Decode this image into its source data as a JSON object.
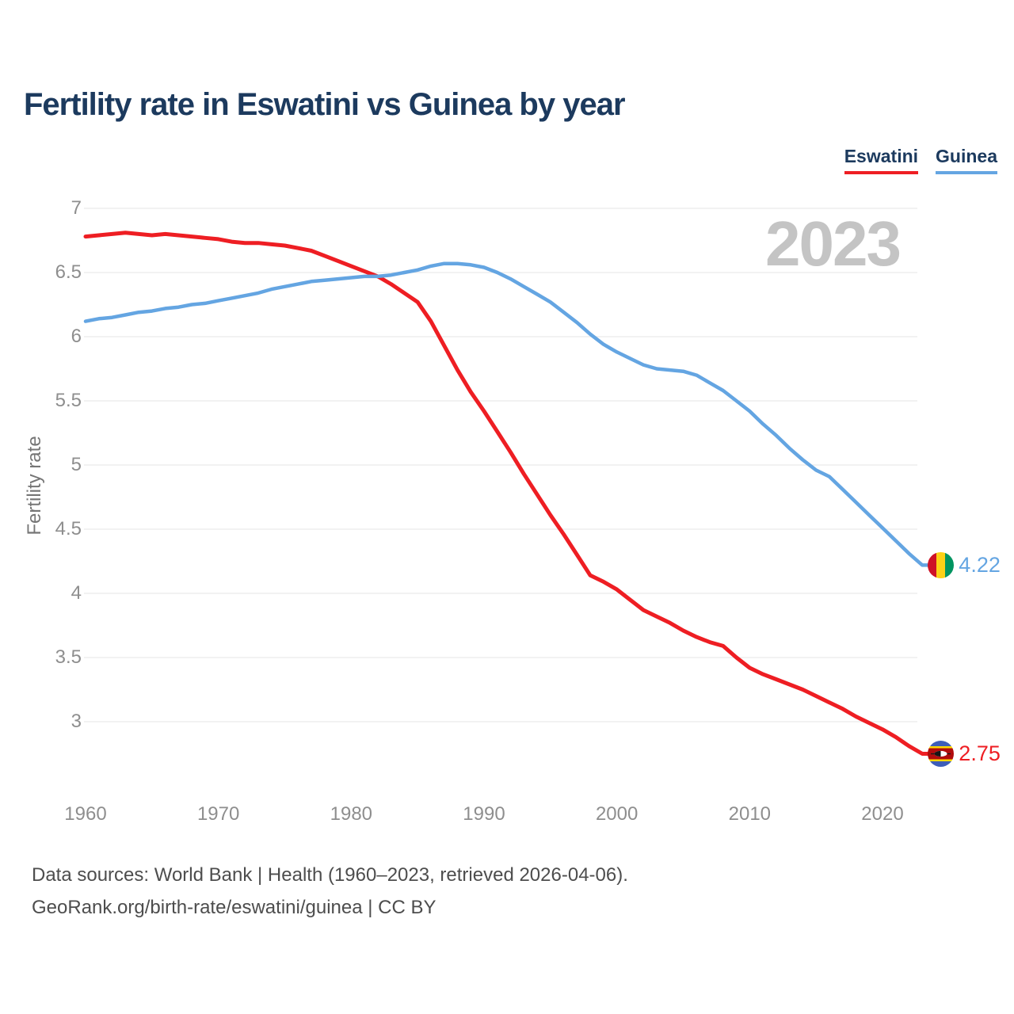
{
  "title": "Fertility rate in Eswatini vs Guinea by year",
  "watermark_year": "2023",
  "legend": [
    {
      "label": "Eswatini",
      "color": "#ee1e23"
    },
    {
      "label": "Guinea",
      "color": "#64a5e2"
    }
  ],
  "endpoints": {
    "eswatini": {
      "value": "2.75"
    },
    "guinea": {
      "value": "4.22"
    }
  },
  "footer": {
    "line1": "Data sources: World Bank | Health (1960–2023, retrieved 2026-04-06).",
    "line2": "GeoRank.org/birth-rate/eswatini/guinea | CC BY"
  },
  "colors": {
    "eswatini_line": "#ee1e23",
    "guinea_line": "#64a5e2",
    "title_text": "#1c3a5e",
    "watermark": "#c4c4c4",
    "grid": "#e9e9e9",
    "tick_text": "#8e8e8e",
    "footer_text": "#4d4d4d"
  },
  "chart_data": {
    "type": "line",
    "title": "Fertility rate in Eswatini vs Guinea by year",
    "xlabel": "",
    "ylabel": "Fertility rate",
    "x_ticks": [
      1960,
      1970,
      1980,
      1990,
      2000,
      2010,
      2020
    ],
    "y_ticks": [
      7,
      6.5,
      6,
      5.5,
      5,
      4.5,
      4,
      3.5,
      3
    ],
    "xlim": [
      1960,
      2023
    ],
    "ylim": [
      2.6,
      7.05
    ],
    "grid": true,
    "legend_position": "top-right",
    "years": [
      1960,
      1961,
      1962,
      1963,
      1964,
      1965,
      1966,
      1967,
      1968,
      1969,
      1970,
      1971,
      1972,
      1973,
      1974,
      1975,
      1976,
      1977,
      1978,
      1979,
      1980,
      1981,
      1982,
      1983,
      1984,
      1985,
      1986,
      1987,
      1988,
      1989,
      1990,
      1991,
      1992,
      1993,
      1994,
      1995,
      1996,
      1997,
      1998,
      1999,
      2000,
      2001,
      2002,
      2003,
      2004,
      2005,
      2006,
      2007,
      2008,
      2009,
      2010,
      2011,
      2012,
      2013,
      2014,
      2015,
      2016,
      2017,
      2018,
      2019,
      2020,
      2021,
      2022,
      2023
    ],
    "series": [
      {
        "name": "Eswatini",
        "color": "#ee1e23",
        "end_value": 2.75,
        "end_label": "2.75",
        "values": [
          6.78,
          6.79,
          6.8,
          6.81,
          6.8,
          6.79,
          6.8,
          6.79,
          6.78,
          6.77,
          6.76,
          6.74,
          6.73,
          6.73,
          6.72,
          6.71,
          6.69,
          6.67,
          6.63,
          6.59,
          6.55,
          6.51,
          6.47,
          6.41,
          6.34,
          6.27,
          6.12,
          5.93,
          5.74,
          5.57,
          5.42,
          5.26,
          5.1,
          4.93,
          4.77,
          4.61,
          4.46,
          4.3,
          4.14,
          4.09,
          4.03,
          3.95,
          3.87,
          3.82,
          3.77,
          3.71,
          3.66,
          3.62,
          3.59,
          3.5,
          3.42,
          3.37,
          3.33,
          3.29,
          3.25,
          3.2,
          3.15,
          3.1,
          3.04,
          2.99,
          2.94,
          2.88,
          2.81,
          2.75
        ]
      },
      {
        "name": "Guinea",
        "color": "#64a5e2",
        "end_value": 4.22,
        "end_label": "4.22",
        "values": [
          6.12,
          6.14,
          6.15,
          6.17,
          6.19,
          6.2,
          6.22,
          6.23,
          6.25,
          6.26,
          6.28,
          6.3,
          6.32,
          6.34,
          6.37,
          6.39,
          6.41,
          6.43,
          6.44,
          6.45,
          6.46,
          6.47,
          6.47,
          6.48,
          6.5,
          6.52,
          6.55,
          6.57,
          6.57,
          6.56,
          6.54,
          6.5,
          6.45,
          6.39,
          6.33,
          6.27,
          6.19,
          6.11,
          6.02,
          5.94,
          5.88,
          5.83,
          5.78,
          5.75,
          5.74,
          5.73,
          5.7,
          5.64,
          5.58,
          5.5,
          5.42,
          5.32,
          5.23,
          5.13,
          5.04,
          4.96,
          4.91,
          4.81,
          4.71,
          4.61,
          4.51,
          4.41,
          4.31,
          4.22
        ]
      }
    ]
  }
}
